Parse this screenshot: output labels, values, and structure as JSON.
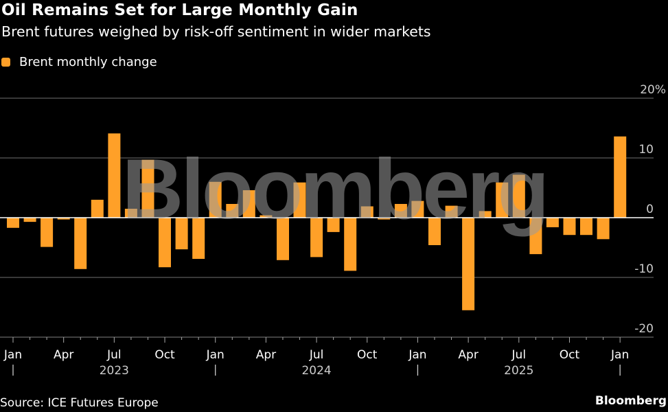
{
  "header": {
    "title": "Oil Remains Set for Large Monthly Gain",
    "subtitle": "Brent futures weighed by risk-off sentiment in wider markets"
  },
  "legend": {
    "items": [
      {
        "label": "Brent monthly change",
        "color": "#FFA028"
      }
    ]
  },
  "footer": {
    "source": "Source: ICE Futures Europe",
    "brand": "Bloomberg"
  },
  "watermark": "Bloomberg",
  "colors": {
    "bar": "#FFA028",
    "background": "#000000",
    "grid": "#5a5a5a",
    "zero_line": "#ffffff",
    "text": "#ffffff",
    "tick_text": "#cccccc"
  },
  "chart_data": {
    "type": "bar",
    "title": "Oil Remains Set for Large Monthly Gain",
    "subtitle": "Brent futures weighed by risk-off sentiment in wider markets",
    "xlabel": "",
    "ylabel": "",
    "ylim": [
      -20,
      20
    ],
    "y_ticks": [
      {
        "value": 20,
        "label": "20%"
      },
      {
        "value": 10,
        "label": "10"
      },
      {
        "value": 0,
        "label": "0"
      },
      {
        "value": -10,
        "label": "-10"
      },
      {
        "value": -20,
        "label": "-20"
      }
    ],
    "grid": true,
    "legend_position": "top-left",
    "y_axis_position": "right",
    "x_month_labels": [
      {
        "index": 0,
        "label": "Jan"
      },
      {
        "index": 3,
        "label": "Apr"
      },
      {
        "index": 6,
        "label": "Jul"
      },
      {
        "index": 9,
        "label": "Oct"
      },
      {
        "index": 12,
        "label": "Jan"
      },
      {
        "index": 15,
        "label": "Apr"
      },
      {
        "index": 18,
        "label": "Jul"
      },
      {
        "index": 21,
        "label": "Oct"
      },
      {
        "index": 24,
        "label": "Jan"
      },
      {
        "index": 27,
        "label": "Apr"
      },
      {
        "index": 30,
        "label": "Jul"
      },
      {
        "index": 33,
        "label": "Oct"
      },
      {
        "index": 36,
        "label": "Jan"
      }
    ],
    "x_year_labels": [
      {
        "index": 6,
        "label": "2023"
      },
      {
        "index": 18,
        "label": "2024"
      },
      {
        "index": 30,
        "label": "2025"
      }
    ],
    "year_dividers": [
      0,
      12,
      24,
      36
    ],
    "categories": [
      "2023-01",
      "2023-02",
      "2023-03",
      "2023-04",
      "2023-05",
      "2023-06",
      "2023-07",
      "2023-08",
      "2023-09",
      "2023-10",
      "2023-11",
      "2023-12",
      "2024-01",
      "2024-02",
      "2024-03",
      "2024-04",
      "2024-05",
      "2024-06",
      "2024-07",
      "2024-08",
      "2024-09",
      "2024-10",
      "2024-11",
      "2024-12",
      "2025-01",
      "2025-02",
      "2025-03",
      "2025-04",
      "2025-05",
      "2025-06",
      "2025-07",
      "2025-08",
      "2025-09",
      "2025-10",
      "2025-11",
      "2025-12",
      "2026-01"
    ],
    "series": [
      {
        "name": "Brent monthly change",
        "unit": "%",
        "values": [
          -1.7,
          -0.7,
          -4.9,
          -0.3,
          -8.6,
          3.0,
          14.1,
          1.5,
          9.7,
          -8.3,
          -5.3,
          -6.9,
          6.0,
          2.3,
          4.6,
          0.4,
          -7.1,
          5.9,
          -6.6,
          -2.4,
          -8.9,
          1.9,
          -0.3,
          2.3,
          2.8,
          -4.6,
          2.0,
          -15.5,
          1.1,
          5.9,
          7.2,
          -6.1,
          -1.6,
          -2.9,
          -2.9,
          -3.6,
          13.6
        ]
      }
    ]
  }
}
